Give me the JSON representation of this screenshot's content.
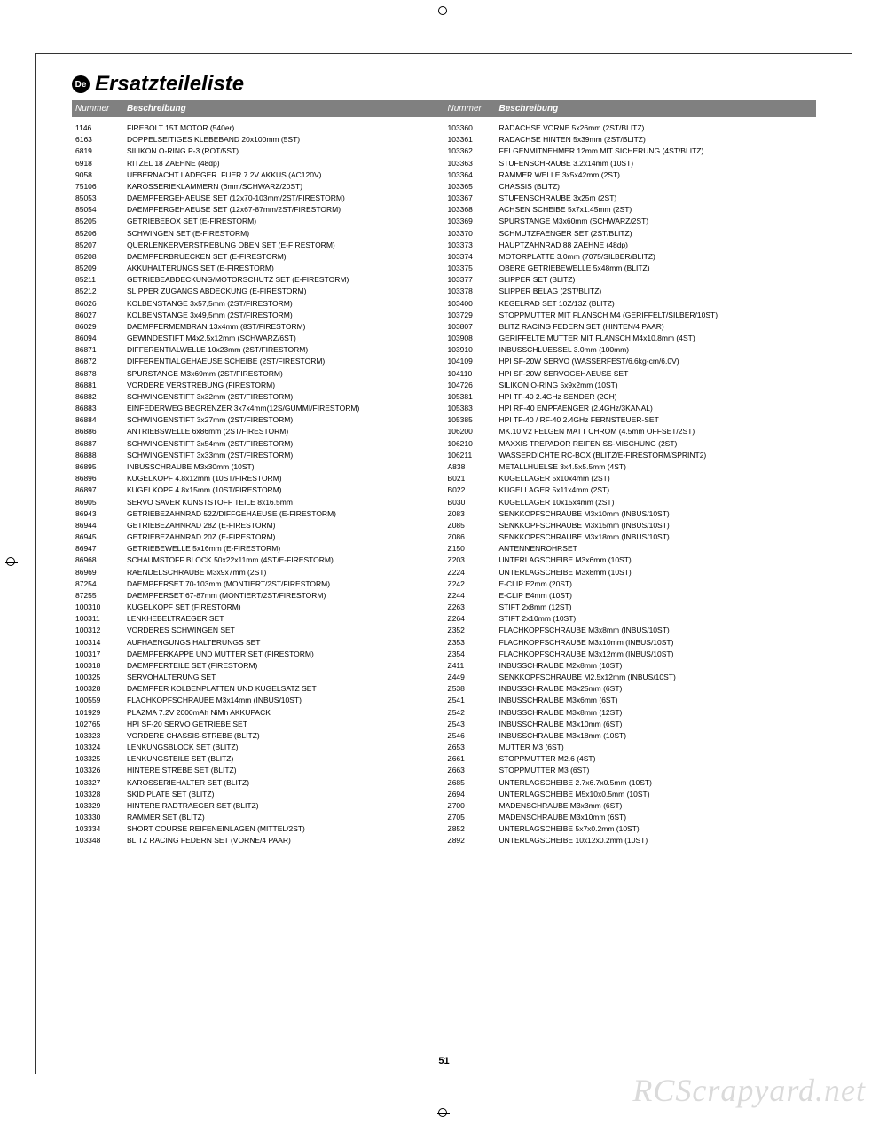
{
  "lang_badge": "De",
  "title": "Ersatzteileliste",
  "header": {
    "num": "Nummer",
    "desc": "Beschreibung"
  },
  "page_number": "51",
  "watermark": "RCScrapyard.net",
  "left": [
    {
      "n": "1146",
      "d": "FIREBOLT 15T MOTOR (540er)"
    },
    {
      "n": "6163",
      "d": "DOPPELSEITIGES KLEBEBAND 20x100mm (5ST)"
    },
    {
      "n": "6819",
      "d": "SILIKON O-RING P-3 (ROT/5ST)"
    },
    {
      "n": "6918",
      "d": "RITZEL 18 ZAEHNE (48dp)"
    },
    {
      "n": "9058",
      "d": "UEBERNACHT LADEGER. FUER 7.2V AKKUS (AC120V)"
    },
    {
      "n": "75106",
      "d": "KAROSSERIEKLAMMERN (6mm/SCHWARZ/20ST)"
    },
    {
      "n": "85053",
      "d": "DAEMPFERGEHAEUSE SET (12x70-103mm/2ST/FIRESTORM)"
    },
    {
      "n": "85054",
      "d": "DAEMPFERGEHAEUSE SET (12x67-87mm/2ST/FIRESTORM)"
    },
    {
      "n": "85205",
      "d": "GETRIEBEBOX SET (E-FIRESTORM)"
    },
    {
      "n": "85206",
      "d": "SCHWINGEN SET (E-FIRESTORM)"
    },
    {
      "n": "85207",
      "d": "QUERLENKERVERSTREBUNG OBEN SET (E-FIRESTORM)"
    },
    {
      "n": "85208",
      "d": "DAEMPFERBRUECKEN SET (E-FIRESTORM)"
    },
    {
      "n": "85209",
      "d": "AKKUHALTERUNGS SET (E-FIRESTORM)"
    },
    {
      "n": "85211",
      "d": "GETRIEBEABDECKUNG/MOTORSCHUTZ SET (E-FIRESTORM)"
    },
    {
      "n": "85212",
      "d": "SLIPPER ZUGANGS ABDECKUNG (E-FIRESTORM)"
    },
    {
      "n": "86026",
      "d": "KOLBENSTANGE 3x57,5mm (2ST/FIRESTORM)"
    },
    {
      "n": "86027",
      "d": "KOLBENSTANGE 3x49,5mm (2ST/FIRESTORM)"
    },
    {
      "n": "86029",
      "d": "DAEMPFERMEMBRAN 13x4mm (8ST/FIRESTORM)"
    },
    {
      "n": "86094",
      "d": "GEWINDESTIFT M4x2.5x12mm (SCHWARZ/6ST)"
    },
    {
      "n": "86871",
      "d": "DIFFERENTIALWELLE 10x23mm (2ST/FIRESTORM)"
    },
    {
      "n": "86872",
      "d": "DIFFERENTIALGEHAEUSE SCHEIBE (2ST/FIRESTORM)"
    },
    {
      "n": "86878",
      "d": "SPURSTANGE M3x69mm (2ST/FIRESTORM)"
    },
    {
      "n": "86881",
      "d": "VORDERE VERSTREBUNG (FIRESTORM)"
    },
    {
      "n": "86882",
      "d": "SCHWINGENSTIFT 3x32mm (2ST/FIRESTORM)"
    },
    {
      "n": "86883",
      "d": "EINFEDERWEG BEGRENZER 3x7x4mm(12S/GUMMI/FIRESTORM)"
    },
    {
      "n": "86884",
      "d": "SCHWINGENSTIFT 3x27mm (2ST/FIRESTORM)"
    },
    {
      "n": "86886",
      "d": "ANTRIEBSWELLE 6x86mm (2ST/FIRESTORM)"
    },
    {
      "n": "86887",
      "d": "SCHWINGENSTIFT 3x54mm (2ST/FIRESTORM)"
    },
    {
      "n": "86888",
      "d": "SCHWINGENSTIFT 3x33mm (2ST/FIRESTORM)"
    },
    {
      "n": "86895",
      "d": "INBUSSCHRAUBE M3x30mm (10ST)"
    },
    {
      "n": "86896",
      "d": "KUGELKOPF 4.8x12mm (10ST/FIRESTORM)"
    },
    {
      "n": "86897",
      "d": "KUGELKOPF 4.8x15mm (10ST/FIRESTORM)"
    },
    {
      "n": "86905",
      "d": "SERVO SAVER KUNSTSTOFF TEILE 8x16.5mm"
    },
    {
      "n": "86943",
      "d": "GETRIEBEZAHNRAD 52Z/DIFFGEHAEUSE (E-FIRESTORM)"
    },
    {
      "n": "86944",
      "d": "GETRIEBEZAHNRAD 28Z (E-FIRESTORM)"
    },
    {
      "n": "86945",
      "d": "GETRIEBEZAHNRAD 20Z (E-FIRESTORM)"
    },
    {
      "n": "86947",
      "d": "GETRIEBEWELLE 5x16mm (E-FIRESTORM)"
    },
    {
      "n": "86968",
      "d": "SCHAUMSTOFF BLOCK 50x22x11mm (4ST/E-FIRESTORM)"
    },
    {
      "n": "86969",
      "d": "RAENDELSCHRAUBE M3x9x7mm (2ST)"
    },
    {
      "n": "87254",
      "d": "DAEMPFERSET 70-103mm (MONTIERT/2ST/FIRESTORM)"
    },
    {
      "n": "87255",
      "d": "DAEMPFERSET 67-87mm (MONTIERT/2ST/FIRESTORM)"
    },
    {
      "n": "100310",
      "d": "KUGELKOPF SET (FIRESTORM)"
    },
    {
      "n": "100311",
      "d": "LENKHEBELTRAEGER SET"
    },
    {
      "n": "100312",
      "d": "VORDERES SCHWINGEN SET"
    },
    {
      "n": "100314",
      "d": "AUFHAENGUNGS HALTERUNGS SET"
    },
    {
      "n": "100317",
      "d": "DAEMPFERKAPPE UND MUTTER SET (FIRESTORM)"
    },
    {
      "n": "100318",
      "d": "DAEMPFERTEILE SET (FIRESTORM)"
    },
    {
      "n": "100325",
      "d": "SERVOHALTERUNG SET"
    },
    {
      "n": "100328",
      "d": "DAEMPFER KOLBENPLATTEN UND KUGELSATZ SET"
    },
    {
      "n": "100559",
      "d": "FLACHKOPFSCHRAUBE M3x14mm (INBUS/10ST)"
    },
    {
      "n": "101929",
      "d": "PLAZMA 7.2V 2000mAh NiMh AKKUPACK"
    },
    {
      "n": "102765",
      "d": "HPI SF-20 SERVO GETRIEBE SET"
    },
    {
      "n": "103323",
      "d": "VORDERE CHASSIS-STREBE (BLITZ)"
    },
    {
      "n": "103324",
      "d": "LENKUNGSBLOCK SET (BLITZ)"
    },
    {
      "n": "103325",
      "d": "LENKUNGSTEILE SET (BLITZ)"
    },
    {
      "n": "103326",
      "d": "HINTERE STREBE SET (BLITZ)"
    },
    {
      "n": "103327",
      "d": "KAROSSERIEHALTER SET (BLITZ)"
    },
    {
      "n": "103328",
      "d": "SKID PLATE SET (BLITZ)"
    },
    {
      "n": "103329",
      "d": "HINTERE RADTRAEGER SET (BLITZ)"
    },
    {
      "n": "103330",
      "d": "RAMMER SET (BLITZ)"
    },
    {
      "n": "103334",
      "d": "SHORT COURSE REIFENEINLAGEN (MITTEL/2ST)"
    },
    {
      "n": "103348",
      "d": "BLITZ RACING FEDERN SET (VORNE/4 PAAR)"
    }
  ],
  "right": [
    {
      "n": "103360",
      "d": "RADACHSE VORNE 5x26mm (2ST/BLITZ)"
    },
    {
      "n": "103361",
      "d": "RADACHSE HINTEN 5x39mm (2ST/BLITZ)"
    },
    {
      "n": "103362",
      "d": "FELGENMITNEHMER 12mm MIT SICHERUNG (4ST/BLITZ)"
    },
    {
      "n": "103363",
      "d": "STUFENSCHRAUBE 3.2x14mm (10ST)"
    },
    {
      "n": "103364",
      "d": "RAMMER WELLE 3x5x42mm (2ST)"
    },
    {
      "n": "103365",
      "d": "CHASSIS (BLITZ)"
    },
    {
      "n": "103367",
      "d": "STUFENSCHRAUBE 3x25m (2ST)"
    },
    {
      "n": "103368",
      "d": "ACHSEN SCHEIBE 5x7x1.45mm (2ST)"
    },
    {
      "n": "103369",
      "d": "SPURSTANGE M3x60mm (SCHWARZ/2ST)"
    },
    {
      "n": "103370",
      "d": "SCHMUTZFAENGER SET (2ST/BLITZ)"
    },
    {
      "n": "103373",
      "d": "HAUPTZAHNRAD 88 ZAEHNE (48dp)"
    },
    {
      "n": "103374",
      "d": "MOTORPLATTE 3.0mm (7075/SILBER/BLITZ)"
    },
    {
      "n": "103375",
      "d": "OBERE GETRIEBEWELLE 5x48mm (BLITZ)"
    },
    {
      "n": "103377",
      "d": "SLIPPER SET (BLITZ)"
    },
    {
      "n": "103378",
      "d": "SLIPPER BELAG (2ST/BLITZ)"
    },
    {
      "n": "103400",
      "d": "KEGELRAD SET 10Z/13Z (BLITZ)"
    },
    {
      "n": "103729",
      "d": "STOPPMUTTER MIT FLANSCH M4 (GERIFFELT/SILBER/10ST)"
    },
    {
      "n": "103807",
      "d": "BLITZ RACING FEDERN SET (HINTEN/4 PAAR)"
    },
    {
      "n": "103908",
      "d": "GERIFFELTE MUTTER MIT FLANSCH M4x10.8mm (4ST)"
    },
    {
      "n": "103910",
      "d": "INBUSSCHLUESSEL 3.0mm (100mm)"
    },
    {
      "n": "104109",
      "d": "HPI SF-20W SERVO (WASSERFEST/6.6kg-cm/6.0V)"
    },
    {
      "n": "104110",
      "d": "HPI SF-20W SERVOGEHAEUSE SET"
    },
    {
      "n": "104726",
      "d": "SILIKON O-RING 5x9x2mm (10ST)"
    },
    {
      "n": "105381",
      "d": "HPI TF-40 2.4GHz SENDER (2CH)"
    },
    {
      "n": "105383",
      "d": "HPI RF-40 EMPFAENGER (2.4GHz/3KANAL)"
    },
    {
      "n": "105385",
      "d": "HPI TF-40 / RF-40 2.4GHz FERNSTEUER-SET"
    },
    {
      "n": "106200",
      "d": "MK.10 V2 FELGEN MATT CHROM (4.5mm OFFSET/2ST)"
    },
    {
      "n": "106210",
      "d": "MAXXIS TREPADOR REIFEN SS-MISCHUNG (2ST)"
    },
    {
      "n": "106211",
      "d": "WASSERDICHTE RC-BOX (BLITZ/E-FIRESTORM/SPRINT2)"
    },
    {
      "n": "A838",
      "d": "METALLHUELSE 3x4.5x5.5mm (4ST)"
    },
    {
      "n": "B021",
      "d": "KUGELLAGER 5x10x4mm (2ST)"
    },
    {
      "n": "B022",
      "d": "KUGELLAGER 5x11x4mm (2ST)"
    },
    {
      "n": "B030",
      "d": "KUGELLAGER 10x15x4mm (2ST)"
    },
    {
      "n": "Z083",
      "d": "SENKKOPFSCHRAUBE M3x10mm (INBUS/10ST)"
    },
    {
      "n": "Z085",
      "d": "SENKKOPFSCHRAUBE M3x15mm (INBUS/10ST)"
    },
    {
      "n": "Z086",
      "d": "SENKKOPFSCHRAUBE M3x18mm (INBUS/10ST)"
    },
    {
      "n": "Z150",
      "d": "ANTENNENROHRSET"
    },
    {
      "n": "Z203",
      "d": "UNTERLAGSCHEIBE M3x6mm (10ST)"
    },
    {
      "n": "Z224",
      "d": "UNTERLAGSCHEIBE M3x8mm (10ST)"
    },
    {
      "n": "Z242",
      "d": "E-CLIP E2mm (20ST)"
    },
    {
      "n": "Z244",
      "d": "E-CLIP E4mm (10ST)"
    },
    {
      "n": "Z263",
      "d": "STIFT 2x8mm (12ST)"
    },
    {
      "n": "Z264",
      "d": "STIFT 2x10mm (10ST)"
    },
    {
      "n": "Z352",
      "d": "FLACHKOPFSCHRAUBE M3x8mm (INBUS/10ST)"
    },
    {
      "n": "Z353",
      "d": "FLACHKOPFSCHRAUBE M3x10mm (INBUS/10ST)"
    },
    {
      "n": "Z354",
      "d": "FLACHKOPFSCHRAUBE M3x12mm (INBUS/10ST)"
    },
    {
      "n": "Z411",
      "d": "INBUSSCHRAUBE M2x8mm (10ST)"
    },
    {
      "n": "Z449",
      "d": "SENKKOPFSCHRAUBE M2.5x12mm (INBUS/10ST)"
    },
    {
      "n": "Z538",
      "d": "INBUSSCHRAUBE M3x25mm (6ST)"
    },
    {
      "n": "Z541",
      "d": "INBUSSCHRAUBE M3x6mm (6ST)"
    },
    {
      "n": "Z542",
      "d": "INBUSSCHRAUBE M3x8mm (12ST)"
    },
    {
      "n": "Z543",
      "d": "INBUSSCHRAUBE M3x10mm (6ST)"
    },
    {
      "n": "Z546",
      "d": "INBUSSCHRAUBE M3x18mm (10ST)"
    },
    {
      "n": "Z653",
      "d": "MUTTER M3 (6ST)"
    },
    {
      "n": "Z661",
      "d": "STOPPMUTTER M2.6 (4ST)"
    },
    {
      "n": "Z663",
      "d": "STOPPMUTTER M3 (6ST)"
    },
    {
      "n": "Z685",
      "d": "UNTERLAGSCHEIBE 2.7x6.7x0.5mm (10ST)"
    },
    {
      "n": "Z694",
      "d": "UNTERLAGSCHEIBE M5x10x0.5mm (10ST)"
    },
    {
      "n": "Z700",
      "d": "MADENSCHRAUBE M3x3mm (6ST)"
    },
    {
      "n": "Z705",
      "d": "MADENSCHRAUBE M3x10mm (6ST)"
    },
    {
      "n": "Z852",
      "d": "UNTERLAGSCHEIBE 5x7x0.2mm (10ST)"
    },
    {
      "n": "Z892",
      "d": "UNTERLAGSCHEIBE 10x12x0.2mm (10ST)"
    }
  ]
}
